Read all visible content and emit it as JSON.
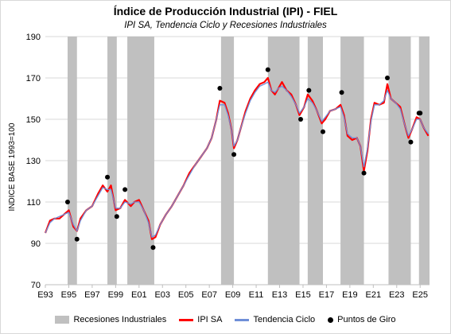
{
  "chart_data": {
    "type": "line",
    "title": "Índice de Producción Industrial (IPI) - FIEL",
    "subtitle": "IPI SA, Tendencia Ciclo y Recesiones Industriales",
    "xlabel": "",
    "ylabel": "INDICE BASE 1993=100",
    "ylim": [
      70,
      190
    ],
    "xlim": [
      1993.0,
      2025.8
    ],
    "yticks": [
      70,
      90,
      110,
      130,
      150,
      170,
      190
    ],
    "xticks": [
      {
        "v": 1993,
        "label": "E93"
      },
      {
        "v": 1995,
        "label": "E95"
      },
      {
        "v": 1997,
        "label": "E97"
      },
      {
        "v": 1999,
        "label": "E99"
      },
      {
        "v": 2001,
        "label": "E01"
      },
      {
        "v": 2003,
        "label": "E03"
      },
      {
        "v": 2005,
        "label": "E05"
      },
      {
        "v": 2007,
        "label": "E07"
      },
      {
        "v": 2009,
        "label": "E09"
      },
      {
        "v": 2011,
        "label": "E11"
      },
      {
        "v": 2013,
        "label": "E13"
      },
      {
        "v": 2015,
        "label": "E15"
      },
      {
        "v": 2017,
        "label": "E17"
      },
      {
        "v": 2019,
        "label": "E19"
      },
      {
        "v": 2021,
        "label": "E21"
      },
      {
        "v": 2023,
        "label": "E23"
      },
      {
        "v": 2025,
        "label": "E25"
      }
    ],
    "grid": "horizontal",
    "legend_position": "bottom",
    "recessions": [
      [
        1994.9,
        1995.7
      ],
      [
        1998.3,
        1999.1
      ],
      [
        2000.0,
        2002.3
      ],
      [
        2008.0,
        2009.1
      ],
      [
        2012.0,
        2014.7
      ],
      [
        2015.4,
        2016.7
      ],
      [
        2018.2,
        2020.2
      ],
      [
        2022.3,
        2024.2
      ],
      [
        2024.9,
        2025.8
      ]
    ],
    "series": [
      {
        "name": "IPI SA",
        "color": "#ff0000",
        "points": [
          [
            1993.0,
            95
          ],
          [
            1993.4,
            101
          ],
          [
            1993.8,
            102
          ],
          [
            1994.2,
            102
          ],
          [
            1994.6,
            104
          ],
          [
            1995.0,
            106
          ],
          [
            1995.4,
            98
          ],
          [
            1995.7,
            96
          ],
          [
            1996.0,
            102
          ],
          [
            1996.5,
            106
          ],
          [
            1997.0,
            108
          ],
          [
            1997.5,
            114
          ],
          [
            1997.9,
            118
          ],
          [
            1998.3,
            115
          ],
          [
            1998.6,
            118
          ],
          [
            1999.0,
            106
          ],
          [
            1999.4,
            107
          ],
          [
            1999.8,
            111
          ],
          [
            2000.3,
            108
          ],
          [
            2000.6,
            110
          ],
          [
            2001.0,
            111
          ],
          [
            2001.4,
            106
          ],
          [
            2001.8,
            101
          ],
          [
            2002.1,
            92
          ],
          [
            2002.4,
            93
          ],
          [
            2002.8,
            99
          ],
          [
            2003.3,
            104
          ],
          [
            2003.8,
            108
          ],
          [
            2004.3,
            113
          ],
          [
            2004.8,
            118
          ],
          [
            2005.3,
            124
          ],
          [
            2005.8,
            128
          ],
          [
            2006.3,
            132
          ],
          [
            2006.8,
            136
          ],
          [
            2007.2,
            141
          ],
          [
            2007.6,
            150
          ],
          [
            2007.9,
            159
          ],
          [
            2008.3,
            158
          ],
          [
            2008.6,
            153
          ],
          [
            2008.9,
            145
          ],
          [
            2009.1,
            136
          ],
          [
            2009.4,
            140
          ],
          [
            2009.7,
            146
          ],
          [
            2010.1,
            154
          ],
          [
            2010.5,
            160
          ],
          [
            2010.9,
            164
          ],
          [
            2011.3,
            167
          ],
          [
            2011.7,
            168
          ],
          [
            2012.0,
            170
          ],
          [
            2012.3,
            164
          ],
          [
            2012.6,
            162
          ],
          [
            2012.9,
            165
          ],
          [
            2013.2,
            168
          ],
          [
            2013.6,
            164
          ],
          [
            2014.0,
            162
          ],
          [
            2014.4,
            157
          ],
          [
            2014.7,
            152
          ],
          [
            2015.1,
            156
          ],
          [
            2015.4,
            162
          ],
          [
            2015.8,
            159
          ],
          [
            2016.2,
            154
          ],
          [
            2016.6,
            148
          ],
          [
            2016.9,
            150
          ],
          [
            2017.3,
            154
          ],
          [
            2017.8,
            155
          ],
          [
            2018.2,
            157
          ],
          [
            2018.5,
            152
          ],
          [
            2018.8,
            142
          ],
          [
            2019.2,
            140
          ],
          [
            2019.6,
            141
          ],
          [
            2019.9,
            137
          ],
          [
            2020.2,
            125
          ],
          [
            2020.5,
            135
          ],
          [
            2020.8,
            150
          ],
          [
            2021.1,
            158
          ],
          [
            2021.5,
            157
          ],
          [
            2021.9,
            158
          ],
          [
            2022.2,
            167
          ],
          [
            2022.5,
            160
          ],
          [
            2022.9,
            158
          ],
          [
            2023.3,
            156
          ],
          [
            2023.7,
            147
          ],
          [
            2024.0,
            141
          ],
          [
            2024.3,
            145
          ],
          [
            2024.7,
            151
          ],
          [
            2025.0,
            150
          ],
          [
            2025.3,
            146
          ],
          [
            2025.7,
            142
          ]
        ]
      },
      {
        "name": "Tendencia Ciclo",
        "color": "#6f8fd8",
        "points": [
          [
            1993.0,
            95
          ],
          [
            1993.4,
            100
          ],
          [
            1993.8,
            102
          ],
          [
            1994.2,
            103
          ],
          [
            1994.6,
            104
          ],
          [
            1995.0,
            105
          ],
          [
            1995.4,
            99
          ],
          [
            1995.7,
            96
          ],
          [
            1996.0,
            101
          ],
          [
            1996.5,
            106
          ],
          [
            1997.0,
            108
          ],
          [
            1997.5,
            113
          ],
          [
            1997.9,
            117
          ],
          [
            1998.3,
            116
          ],
          [
            1998.6,
            116
          ],
          [
            1999.0,
            107
          ],
          [
            1999.4,
            107
          ],
          [
            1999.8,
            110
          ],
          [
            2000.3,
            109
          ],
          [
            2000.6,
            110
          ],
          [
            2001.0,
            110
          ],
          [
            2001.4,
            106
          ],
          [
            2001.8,
            100
          ],
          [
            2002.1,
            93
          ],
          [
            2002.4,
            94
          ],
          [
            2002.8,
            99
          ],
          [
            2003.3,
            104
          ],
          [
            2003.8,
            108
          ],
          [
            2004.3,
            113
          ],
          [
            2004.8,
            118
          ],
          [
            2005.3,
            123
          ],
          [
            2005.8,
            128
          ],
          [
            2006.3,
            132
          ],
          [
            2006.8,
            136
          ],
          [
            2007.2,
            141
          ],
          [
            2007.6,
            150
          ],
          [
            2007.9,
            157
          ],
          [
            2008.3,
            157
          ],
          [
            2008.6,
            152
          ],
          [
            2008.9,
            145
          ],
          [
            2009.1,
            137
          ],
          [
            2009.4,
            140
          ],
          [
            2009.7,
            146
          ],
          [
            2010.1,
            153
          ],
          [
            2010.5,
            159
          ],
          [
            2010.9,
            163
          ],
          [
            2011.3,
            166
          ],
          [
            2011.7,
            167
          ],
          [
            2012.0,
            168
          ],
          [
            2012.3,
            164
          ],
          [
            2012.6,
            163
          ],
          [
            2012.9,
            165
          ],
          [
            2013.2,
            166
          ],
          [
            2013.6,
            164
          ],
          [
            2014.0,
            161
          ],
          [
            2014.4,
            157
          ],
          [
            2014.7,
            153
          ],
          [
            2015.1,
            156
          ],
          [
            2015.4,
            160
          ],
          [
            2015.8,
            158
          ],
          [
            2016.2,
            154
          ],
          [
            2016.6,
            149
          ],
          [
            2016.9,
            151
          ],
          [
            2017.3,
            154
          ],
          [
            2017.8,
            155
          ],
          [
            2018.2,
            156
          ],
          [
            2018.5,
            151
          ],
          [
            2018.8,
            143
          ],
          [
            2019.2,
            141
          ],
          [
            2019.6,
            141
          ],
          [
            2019.9,
            137
          ],
          [
            2020.2,
            127
          ],
          [
            2020.5,
            136
          ],
          [
            2020.8,
            149
          ],
          [
            2021.1,
            157
          ],
          [
            2021.5,
            157
          ],
          [
            2021.9,
            159
          ],
          [
            2022.2,
            164
          ],
          [
            2022.5,
            160
          ],
          [
            2022.9,
            158
          ],
          [
            2023.3,
            155
          ],
          [
            2023.7,
            147
          ],
          [
            2024.0,
            142
          ],
          [
            2024.3,
            145
          ],
          [
            2024.7,
            150
          ],
          [
            2025.0,
            150
          ],
          [
            2025.3,
            146
          ],
          [
            2025.7,
            143
          ]
        ]
      }
    ],
    "turning_points": [
      [
        1994.9,
        110
      ],
      [
        1995.7,
        92
      ],
      [
        1998.3,
        122
      ],
      [
        1999.1,
        103
      ],
      [
        1999.8,
        116
      ],
      [
        2002.2,
        88
      ],
      [
        2007.9,
        165
      ],
      [
        2009.1,
        133
      ],
      [
        2012.0,
        174
      ],
      [
        2014.8,
        150
      ],
      [
        2015.5,
        164
      ],
      [
        2016.7,
        144
      ],
      [
        2018.3,
        163
      ],
      [
        2020.2,
        124
      ],
      [
        2022.2,
        170
      ],
      [
        2024.2,
        139
      ],
      [
        2024.9,
        153
      ],
      [
        2025.0,
        153
      ]
    ],
    "legend": [
      {
        "label": "Recesiones Industriales",
        "kind": "rect",
        "color": "#c0c0c0"
      },
      {
        "label": "IPI SA",
        "kind": "line",
        "color": "#ff0000"
      },
      {
        "label": "Tendencia Ciclo",
        "kind": "line",
        "color": "#6f8fd8"
      },
      {
        "label": "Puntos de Giro",
        "kind": "dot",
        "color": "#000000"
      }
    ]
  }
}
